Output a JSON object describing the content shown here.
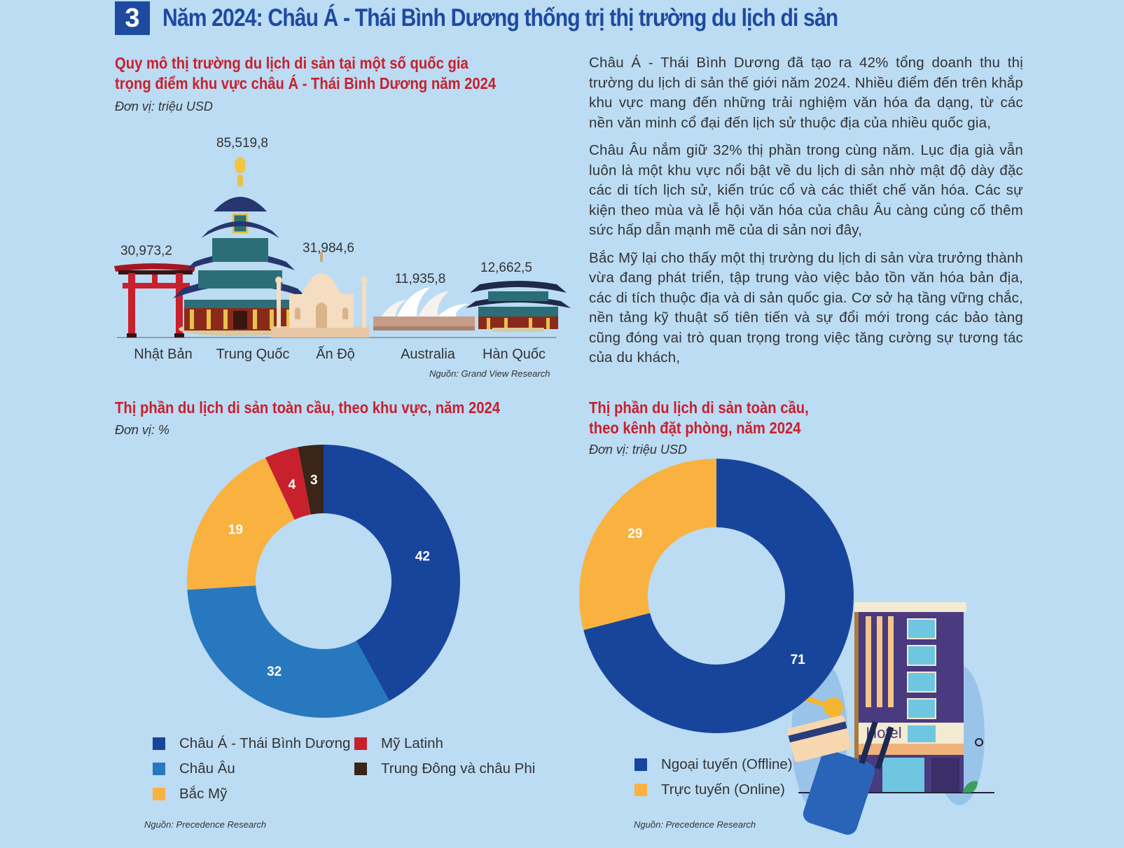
{
  "section": {
    "number": "3",
    "title": "Năm 2024: Châu Á - Thái Bình Dương thống trị thị trường du lịch di sản"
  },
  "colors": {
    "title_red": "#c8202d",
    "blue_dark": "#18459c",
    "blue_mid": "#2878c0",
    "yellow": "#f9b240",
    "red": "#c8202d",
    "brown": "#3a2518",
    "background": "#bcdcf4"
  },
  "paragraphs": [
    "Châu Á - Thái Bình Dương đã tạo ra 42% tổng doanh thu thị trường du lịch di sản thế giới năm 2024. Nhiều điểm đến trên khắp khu vực mang đến những trải nghiệm văn hóa đa dạng, từ các nền văn minh cổ đại đến lịch sử thuộc địa của nhiều quốc gia,",
    "Châu Âu nắm giữ 32% thị phần trong cùng năm. Lục địa già vẫn luôn là một khu vực nổi bật về du lịch di sản nhờ mật độ dày đặc các di tích lịch sử, kiến trúc cổ và các thiết chế văn hóa. Các sự kiện theo mùa và lễ hội văn hóa của châu Âu càng củng cố thêm sức hấp dẫn mạnh mẽ của di sản nơi đây,",
    "Bắc Mỹ lại cho thấy một thị trường du lịch di sản vừa trưởng thành vừa đang phát triển, tập trung vào việc bảo tồn văn hóa bản địa, các di tích thuộc địa và di sản quốc gia. Cơ sở hạ tầng vững chắc, nền tảng kỹ thuật số tiên tiến và sự đổi mới trong các bảo tàng cũng đóng vai trò quan trọng trong việc tăng cường sự tương tác của du khách,"
  ],
  "icons": [
    "torii-gate-icon",
    "temple-of-heaven-icon",
    "taj-mahal-icon",
    "sydney-opera-house-icon",
    "korean-palace-icon",
    "hotel-building-icon",
    "luggage-icon",
    "credit-card-icon",
    "key-icon"
  ],
  "hotel_sign": "Hotel",
  "chart_data": [
    {
      "type": "bar",
      "title": "Quy mô thị trường du lịch di sản tại một số quốc gia trọng điểm khu vực châu Á - Thái Bình Dương năm 2024",
      "title_lines": [
        "Quy mô thị trường du lịch di sản tại một số quốc gia",
        "trọng điểm khu vực châu Á - Thái Bình Dương năm 2024"
      ],
      "unit": "Đơn vị: triệu USD",
      "categories": [
        "Nhật Bản",
        "Trung Quốc",
        "Ấn Độ",
        "Australia",
        "Hàn Quốc"
      ],
      "values": [
        30973.2,
        85519.8,
        31984.6,
        11935.8,
        12662.5
      ],
      "value_labels": [
        "30,973,2",
        "85,519,8",
        "31,984,6",
        "11,935,8",
        "12,662,5"
      ],
      "source": "Nguồn: Grand View Research"
    },
    {
      "type": "pie",
      "title": "Thị phần du lịch di sản toàn cầu, theo khu vực, năm 2024",
      "unit": "Đơn vị: %",
      "labels": [
        "Châu Á - Thái Bình Dương",
        "Châu Âu",
        "Bắc Mỹ",
        "Mỹ Latinh",
        "Trung Đông và châu Phi"
      ],
      "values": [
        42,
        32,
        19,
        4,
        3
      ],
      "colors": [
        "#18459c",
        "#2878c0",
        "#f9b240",
        "#c8202d",
        "#3a2518"
      ],
      "source": "Nguồn: Precedence Research"
    },
    {
      "type": "pie",
      "title": "Thị phần du lịch di sản toàn cầu, theo kênh đặt phòng, năm 2024",
      "title_lines": [
        "Thị phần du lịch di sản toàn cầu,",
        "theo kênh đặt phòng, năm 2024"
      ],
      "unit": "Đơn vị: triệu USD",
      "labels": [
        "Ngoại tuyến (Offline)",
        "Trực tuyến (Online)"
      ],
      "values": [
        71,
        29
      ],
      "colors": [
        "#18459c",
        "#f9b240"
      ],
      "source": "Nguồn: Precedence Research"
    }
  ]
}
